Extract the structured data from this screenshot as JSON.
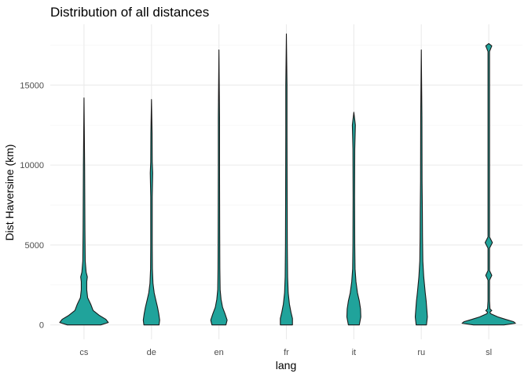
{
  "chart_data": {
    "type": "violin",
    "title": "Distribution of all distances",
    "xlabel": "lang",
    "ylabel": "Dist Haversine (km)",
    "categories": [
      "cs",
      "de",
      "en",
      "fr",
      "it",
      "ru",
      "sl"
    ],
    "yticks": [
      0,
      5000,
      10000,
      15000
    ],
    "ylim": [
      -900,
      18800
    ],
    "grid": true,
    "fill_color": "#20a39b",
    "outline_color": "#1a1a1a",
    "violins": [
      {
        "category": "cs",
        "min": 0,
        "max": 14200,
        "profile": [
          [
            0,
            0.55
          ],
          [
            150,
            0.8
          ],
          [
            350,
            0.72
          ],
          [
            600,
            0.5
          ],
          [
            900,
            0.3
          ],
          [
            1300,
            0.22
          ],
          [
            1700,
            0.12
          ],
          [
            2200,
            0.09
          ],
          [
            2700,
            0.09
          ],
          [
            3000,
            0.11
          ],
          [
            3300,
            0.07
          ],
          [
            4000,
            0.04
          ],
          [
            6000,
            0.03
          ],
          [
            10000,
            0.02
          ],
          [
            14200,
            0.0
          ]
        ]
      },
      {
        "category": "de",
        "min": 0,
        "max": 14100,
        "profile": [
          [
            0,
            0.25
          ],
          [
            300,
            0.27
          ],
          [
            700,
            0.24
          ],
          [
            1100,
            0.2
          ],
          [
            1500,
            0.15
          ],
          [
            2000,
            0.09
          ],
          [
            2600,
            0.05
          ],
          [
            3500,
            0.03
          ],
          [
            5000,
            0.025
          ],
          [
            8000,
            0.025
          ],
          [
            9500,
            0.04
          ],
          [
            10200,
            0.025
          ],
          [
            12000,
            0.02
          ],
          [
            14100,
            0.0
          ]
        ]
      },
      {
        "category": "en",
        "min": 0,
        "max": 17200,
        "profile": [
          [
            0,
            0.23
          ],
          [
            300,
            0.27
          ],
          [
            700,
            0.2
          ],
          [
            1100,
            0.12
          ],
          [
            1600,
            0.07
          ],
          [
            2200,
            0.04
          ],
          [
            3500,
            0.03
          ],
          [
            6000,
            0.025
          ],
          [
            10000,
            0.02
          ],
          [
            13000,
            0.02
          ],
          [
            17200,
            0.0
          ]
        ]
      },
      {
        "category": "fr",
        "min": 0,
        "max": 18200,
        "profile": [
          [
            0,
            0.2
          ],
          [
            400,
            0.2
          ],
          [
            800,
            0.15
          ],
          [
            1300,
            0.1
          ],
          [
            2000,
            0.06
          ],
          [
            3000,
            0.04
          ],
          [
            5000,
            0.03
          ],
          [
            8000,
            0.025
          ],
          [
            12000,
            0.02
          ],
          [
            15000,
            0.02
          ],
          [
            18200,
            0.0
          ]
        ]
      },
      {
        "category": "it",
        "min": 0,
        "max": 13300,
        "profile": [
          [
            0,
            0.18
          ],
          [
            500,
            0.23
          ],
          [
            1000,
            0.22
          ],
          [
            1500,
            0.18
          ],
          [
            2000,
            0.12
          ],
          [
            2700,
            0.07
          ],
          [
            3500,
            0.04
          ],
          [
            5000,
            0.03
          ],
          [
            8000,
            0.025
          ],
          [
            11000,
            0.03
          ],
          [
            12500,
            0.05
          ],
          [
            13300,
            0.0
          ]
        ]
      },
      {
        "category": "ru",
        "min": 0,
        "max": 17200,
        "profile": [
          [
            0,
            0.17
          ],
          [
            500,
            0.2
          ],
          [
            1000,
            0.18
          ],
          [
            1500,
            0.16
          ],
          [
            2000,
            0.13
          ],
          [
            3000,
            0.08
          ],
          [
            4000,
            0.05
          ],
          [
            5500,
            0.04
          ],
          [
            7000,
            0.035
          ],
          [
            9000,
            0.025
          ],
          [
            13000,
            0.02
          ],
          [
            17200,
            0.0
          ]
        ]
      },
      {
        "category": "sl",
        "min": 0,
        "max": 17600,
        "profile": [
          [
            0,
            0.5
          ],
          [
            100,
            0.88
          ],
          [
            200,
            0.82
          ],
          [
            350,
            0.55
          ],
          [
            500,
            0.3
          ],
          [
            700,
            0.06
          ],
          [
            800,
            0.04
          ],
          [
            900,
            0.1
          ],
          [
            1000,
            0.04
          ],
          [
            1500,
            0.025
          ],
          [
            2800,
            0.025
          ],
          [
            3100,
            0.1
          ],
          [
            3400,
            0.025
          ],
          [
            4800,
            0.025
          ],
          [
            5150,
            0.12
          ],
          [
            5500,
            0.025
          ],
          [
            17100,
            0.025
          ],
          [
            17450,
            0.1
          ],
          [
            17600,
            0.0
          ]
        ]
      }
    ]
  }
}
